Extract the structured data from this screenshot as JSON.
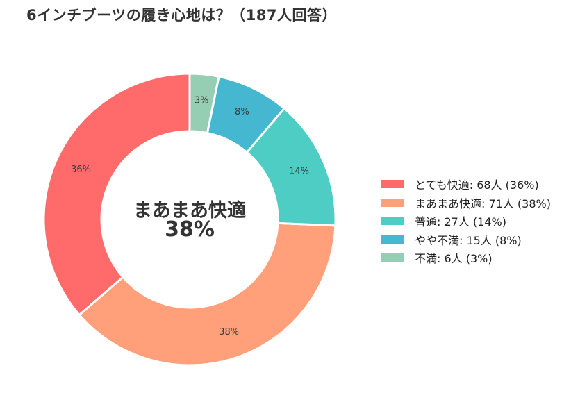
{
  "title": "6インチブーツの履き心地は？（187人回答）",
  "center": {
    "line1": "まあまあ快適",
    "line2": "38%"
  },
  "chart_data": {
    "type": "pie",
    "donut": true,
    "title": "6インチブーツの履き心地は？（187人回答）",
    "total": 187,
    "unit": "人",
    "slices": [
      {
        "label": "とても快適",
        "value": 68,
        "percent_label": "36%",
        "legend": "とても快適:  68人 (36%)",
        "color": "#ff6b6b"
      },
      {
        "label": "まあまあ快適",
        "value": 71,
        "percent_label": "38%",
        "legend": "まあまあ快適:  71人 (38%)",
        "color": "#ffa07a"
      },
      {
        "label": "普通",
        "value": 27,
        "percent_label": "14%",
        "legend": "普通:  27人 (14%)",
        "color": "#4ecdc4"
      },
      {
        "label": "やや不満",
        "value": 15,
        "percent_label": "8%",
        "legend": "やや不満:  15人 (8%)",
        "color": "#45b7d1"
      },
      {
        "label": "不満",
        "value": 6,
        "percent_label": "3%",
        "legend": "不満:  6人 (3%)",
        "color": "#96ceb4"
      }
    ],
    "start_angle": "12 o'clock",
    "direction": "counter-clockwise",
    "legend_position": "right"
  }
}
